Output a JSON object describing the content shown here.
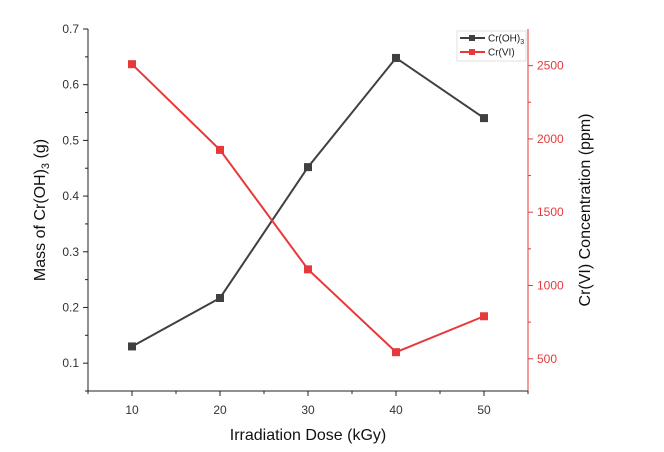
{
  "chart_data": {
    "type": "line",
    "title": "",
    "xlabel": "Irradiation Dose (kGy)",
    "ylabel_left": {
      "prefix": "Mass of Cr(OH)",
      "sub": "3",
      "suffix": " (g)"
    },
    "ylabel_right": "Cr(VI) Concentration (ppm)",
    "x": [
      10,
      20,
      30,
      40,
      50
    ],
    "xlim": [
      5,
      55
    ],
    "xticks": [
      10,
      20,
      30,
      40,
      50
    ],
    "ylim_left": [
      0.05,
      0.7
    ],
    "yticks_left": [
      0.1,
      0.2,
      0.3,
      0.4,
      0.5,
      0.6,
      0.7
    ],
    "ylim_right": [
      280,
      2750
    ],
    "yticks_right": [
      500,
      1000,
      1500,
      2000,
      2500
    ],
    "legend_position": "top-right",
    "series": [
      {
        "name": "Cr(OH)",
        "name_sub": "3",
        "axis": "left",
        "color": "#404040",
        "marker": "square",
        "values": [
          0.13,
          0.217,
          0.452,
          0.648,
          0.54
        ]
      },
      {
        "name": "Cr(VI)",
        "name_sub": "",
        "axis": "right",
        "color": "#e8393a",
        "marker": "square",
        "values": [
          2510,
          1925,
          1110,
          545,
          790
        ]
      }
    ]
  }
}
